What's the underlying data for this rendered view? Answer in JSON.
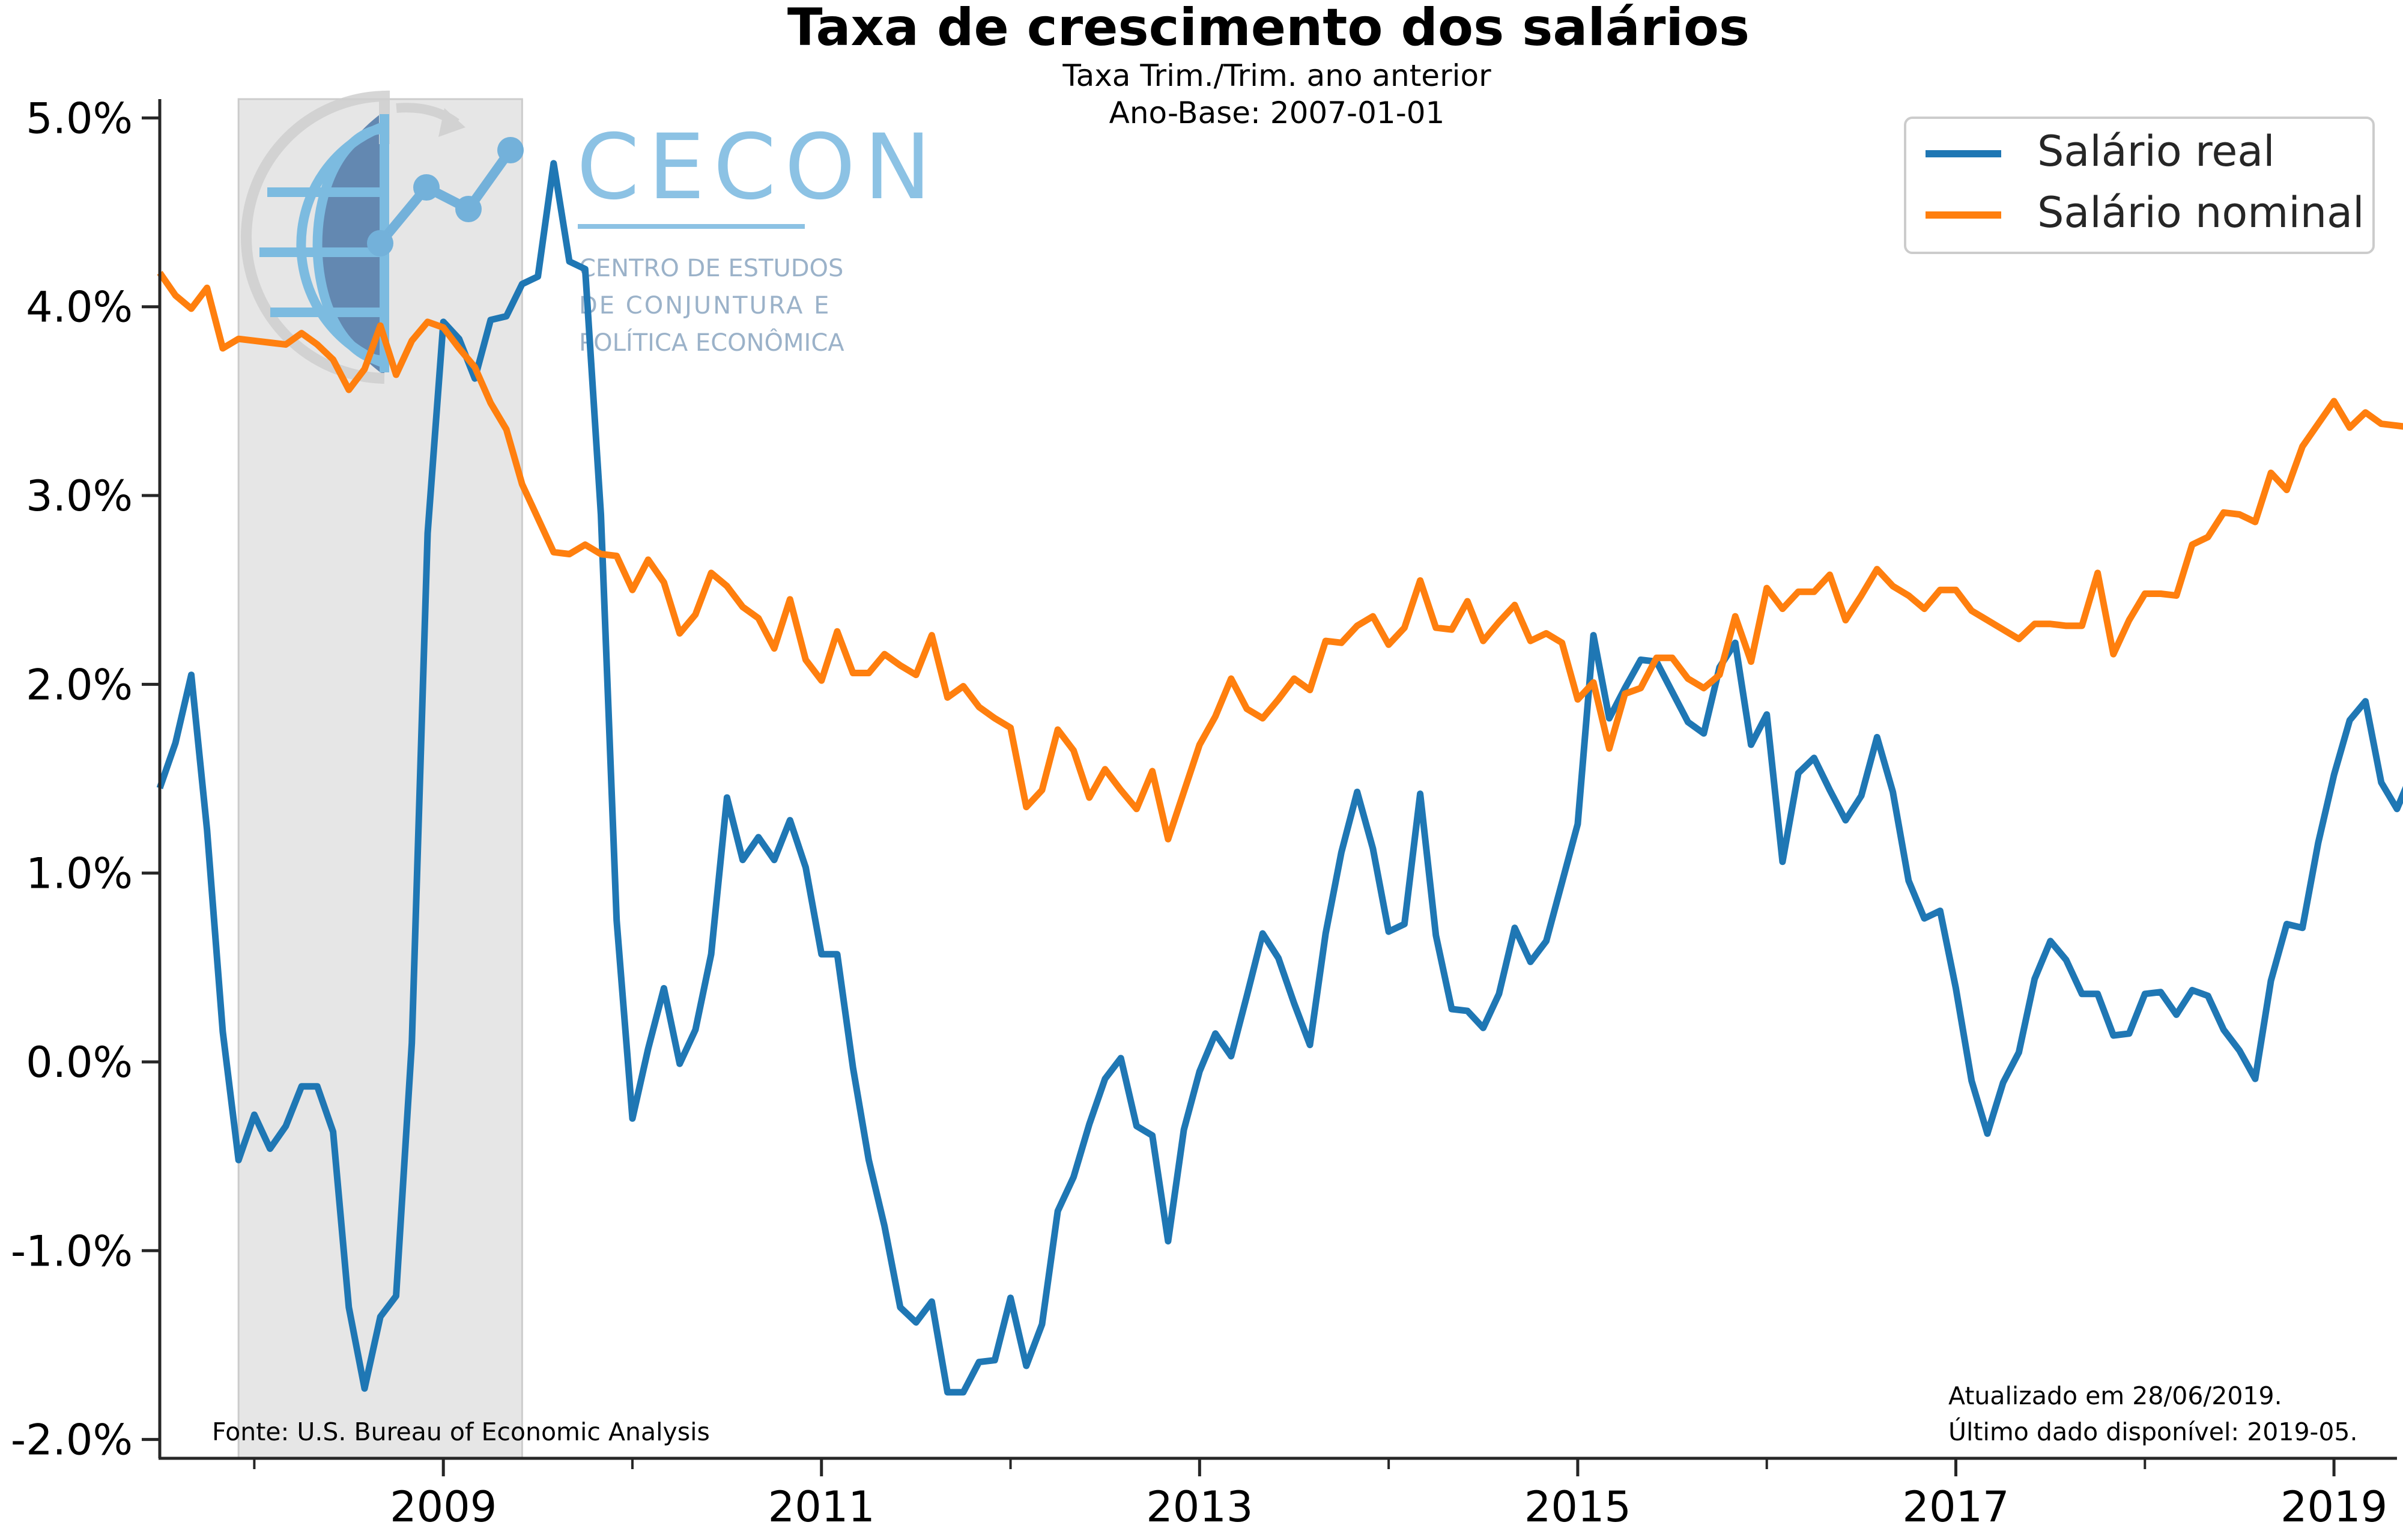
{
  "chart_data": {
    "type": "line",
    "title": "Taxa de crescimento dos salários",
    "subtitle_lines": [
      "Taxa Trim./Trim. ano anterior",
      "Ano-Base: 2007-01-01"
    ],
    "xlabel": "",
    "ylabel": "",
    "x_start": "2007-07",
    "x_end": "2019-05",
    "xlim": [
      "2007-07",
      "2019-05"
    ],
    "ylim": [
      -2.1,
      5.1
    ],
    "y_ticks": [
      "-2.0%",
      "-1.0%",
      "0.0%",
      "1.0%",
      "2.0%",
      "3.0%",
      "4.0%",
      "5.0%"
    ],
    "y_tick_values": [
      -2.0,
      -1.0,
      0.0,
      1.0,
      2.0,
      3.0,
      4.0,
      5.0
    ],
    "x_major_ticks": [
      "2009",
      "2011",
      "2013",
      "2015",
      "2017",
      "2019"
    ],
    "x_major_tick_values": [
      "2009-01",
      "2011-01",
      "2013-01",
      "2015-01",
      "2017-01",
      "2019-01"
    ],
    "x_minor_tick_values": [
      "2008-01",
      "2010-01",
      "2012-01",
      "2014-01",
      "2016-01",
      "2018-01"
    ],
    "recession_shading": {
      "start": "2007-12",
      "end": "2009-06",
      "color": "#e6e6e6"
    },
    "grid": false,
    "legend_position": "top-right",
    "series": [
      {
        "name": "Salário real",
        "color": "#1f77b4",
        "values": [
          1.45,
          1.69,
          2.05,
          1.23,
          0.16,
          -0.52,
          -0.28,
          -0.46,
          -0.34,
          -0.13,
          -0.13,
          -0.37,
          -1.3,
          -1.73,
          -1.35,
          -1.24,
          0.1,
          2.8,
          3.92,
          3.83,
          3.62,
          3.93,
          3.95,
          4.12,
          4.16,
          4.76,
          4.24,
          4.2,
          2.9,
          0.75,
          -0.3,
          0.07,
          0.39,
          -0.01,
          0.17,
          0.57,
          1.4,
          1.07,
          1.19,
          1.07,
          1.28,
          1.03,
          0.57,
          0.57,
          -0.03,
          -0.52,
          -0.87,
          -1.3,
          -1.38,
          -1.27,
          -1.75,
          -1.75,
          -1.59,
          -1.58,
          -1.25,
          -1.61,
          -1.39,
          -0.79,
          -0.61,
          -0.33,
          -0.09,
          0.02,
          -0.34,
          -0.39,
          -0.95,
          -0.36,
          -0.05,
          0.15,
          0.03,
          0.35,
          0.68,
          0.55,
          0.31,
          0.09,
          0.68,
          1.11,
          1.43,
          1.13,
          0.69,
          0.73,
          1.42,
          0.67,
          0.28,
          0.27,
          0.18,
          0.36,
          0.71,
          0.53,
          0.64,
          0.95,
          1.26,
          2.26,
          1.82,
          1.98,
          2.13,
          2.12,
          1.96,
          1.8,
          1.74,
          2.09,
          2.22,
          1.68,
          1.84,
          1.06,
          1.53,
          1.61,
          1.44,
          1.28,
          1.41,
          1.72,
          1.43,
          0.96,
          0.76,
          0.8,
          0.39,
          -0.1,
          -0.38,
          -0.11,
          0.05,
          0.44,
          0.64,
          0.54,
          0.36,
          0.36,
          0.14,
          0.15,
          0.36,
          0.37,
          0.25,
          0.38,
          0.35,
          0.17,
          0.06,
          -0.09,
          0.43,
          0.73,
          0.71,
          1.16,
          1.52,
          1.81,
          1.91,
          1.48,
          1.34,
          1.54
        ]
      },
      {
        "name": "Salário nominal",
        "color": "#ff7f0e",
        "values": [
          4.18,
          4.06,
          3.99,
          4.1,
          3.78,
          3.83,
          3.82,
          3.81,
          3.8,
          3.86,
          3.8,
          3.72,
          3.56,
          3.67,
          3.9,
          3.64,
          3.82,
          3.92,
          3.89,
          3.78,
          3.68,
          3.49,
          3.35,
          3.06,
          2.88,
          2.7,
          2.69,
          2.74,
          2.69,
          2.68,
          2.5,
          2.66,
          2.54,
          2.27,
          2.37,
          2.59,
          2.52,
          2.41,
          2.35,
          2.19,
          2.45,
          2.13,
          2.02,
          2.28,
          2.06,
          2.06,
          2.16,
          2.1,
          2.05,
          2.26,
          1.93,
          1.99,
          1.88,
          1.82,
          1.77,
          1.35,
          1.44,
          1.76,
          1.65,
          1.4,
          1.55,
          1.44,
          1.34,
          1.54,
          1.18,
          1.43,
          1.68,
          1.83,
          2.03,
          1.87,
          1.82,
          1.92,
          2.03,
          1.97,
          2.23,
          2.22,
          2.31,
          2.36,
          2.21,
          2.3,
          2.55,
          2.3,
          2.29,
          2.44,
          2.23,
          2.33,
          2.42,
          2.23,
          2.27,
          2.22,
          1.92,
          2.01,
          1.66,
          1.95,
          1.98,
          2.14,
          2.14,
          2.03,
          1.98,
          2.05,
          2.36,
          2.12,
          2.51,
          2.4,
          2.49,
          2.49,
          2.58,
          2.34,
          2.47,
          2.61,
          2.52,
          2.47,
          2.4,
          2.5,
          2.5,
          2.39,
          2.34,
          2.29,
          2.24,
          2.32,
          2.32,
          2.31,
          2.31,
          2.59,
          2.16,
          2.34,
          2.48,
          2.48,
          2.47,
          2.74,
          2.78,
          2.91,
          2.9,
          2.86,
          3.12,
          3.03,
          3.26,
          3.38,
          3.5,
          3.36,
          3.44,
          3.38,
          3.37,
          3.36
        ]
      }
    ]
  },
  "logo": {
    "name": "CECON",
    "lines": [
      "CENTRO DE ESTUDOS",
      "DE CONJUNTURA E",
      "POLÍTICA ECONÔMICA"
    ]
  },
  "footer": {
    "source": "Fonte: U.S. Bureau of Economic Analysis",
    "updated": "Atualizado em 28/06/2019.",
    "last_data": "Último dado disponível: 2019-05."
  },
  "colors": {
    "real": "#1f77b4",
    "nominal": "#ff7f0e",
    "recession": "#e6e6e6",
    "logo_blue": "#5fa8d8",
    "logo_gray_text": "#8aa5c0"
  }
}
